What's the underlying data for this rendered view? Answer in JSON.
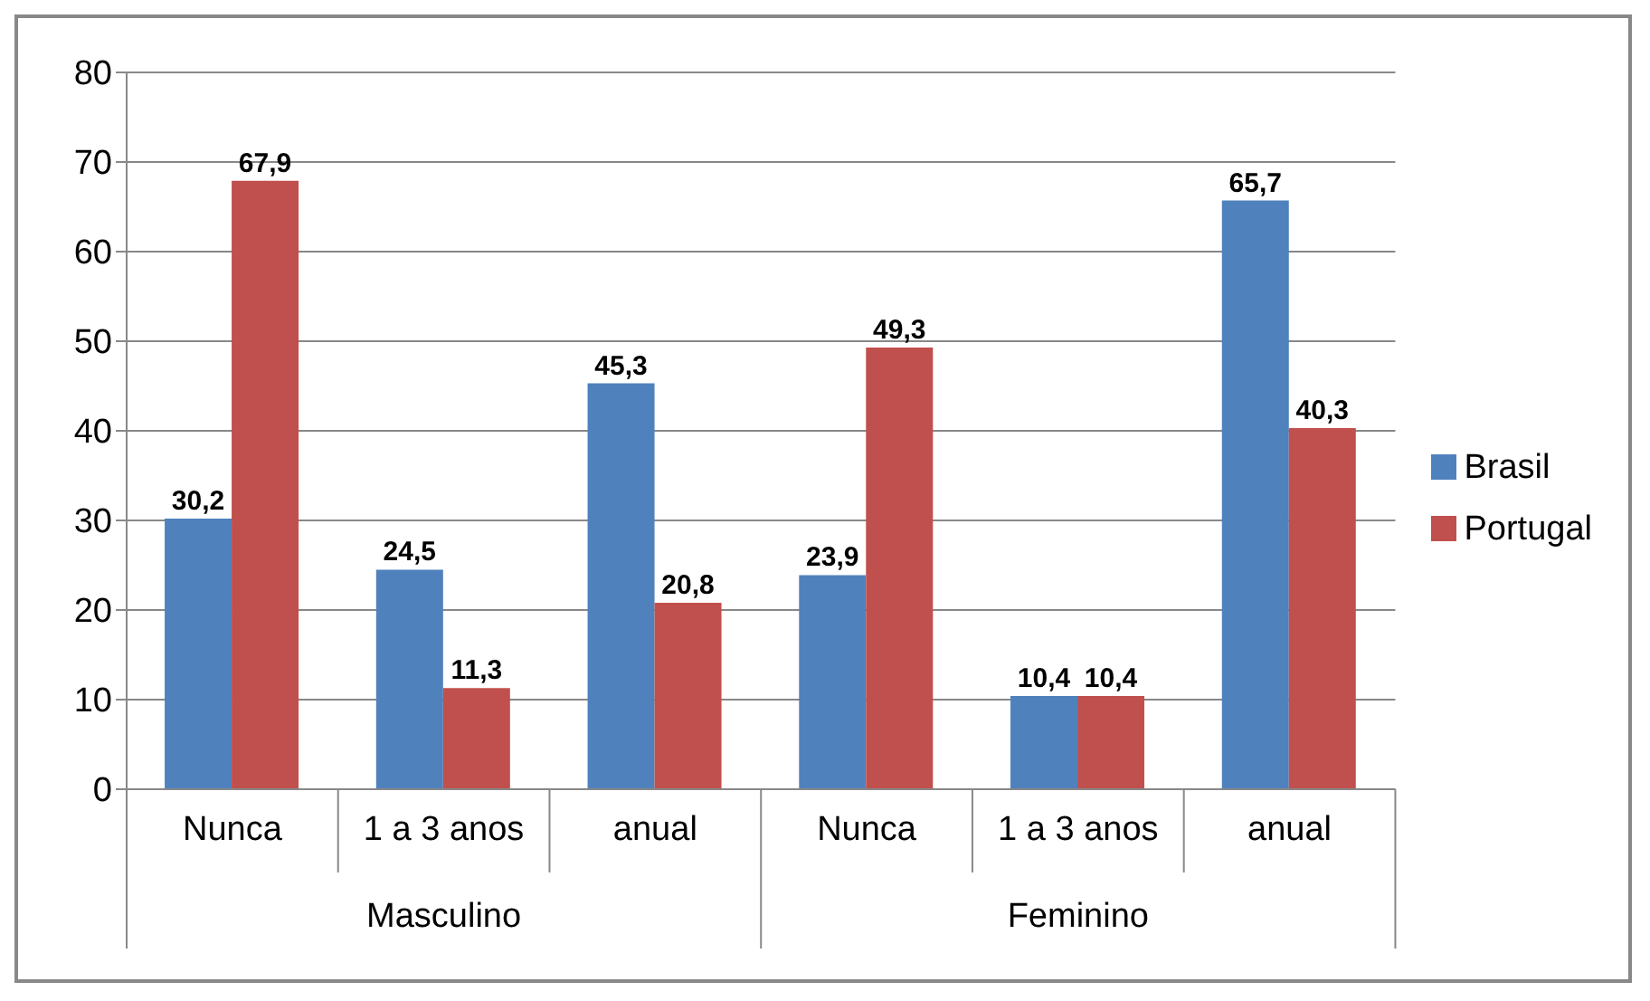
{
  "chart_data": {
    "type": "bar",
    "categories": [
      "Nunca",
      "1 a 3 anos",
      "anual",
      "Nunca",
      "1 a 3 anos",
      "anual"
    ],
    "series": [
      {
        "name": "Brasil",
        "color": "#4f81bd",
        "values": [
          30.2,
          24.5,
          45.3,
          23.9,
          10.4,
          65.7
        ],
        "value_labels": [
          "30,2",
          "24,5",
          "45,3",
          "23,9",
          "10,4",
          "65,7"
        ]
      },
      {
        "name": "Portugal",
        "color": "#c0504d",
        "values": [
          67.9,
          11.3,
          20.8,
          49.3,
          10.4,
          40.3
        ],
        "value_labels": [
          "67,9",
          "11,3",
          "20,8",
          "49,3",
          "10,4",
          "40,3"
        ]
      }
    ],
    "annotations": [
      "Masculino",
      "Feminino"
    ],
    "ylim": [
      0,
      80
    ],
    "yticks": [
      0,
      10,
      20,
      30,
      40,
      50,
      60,
      70,
      80
    ],
    "grid": "y",
    "legend": "right"
  }
}
